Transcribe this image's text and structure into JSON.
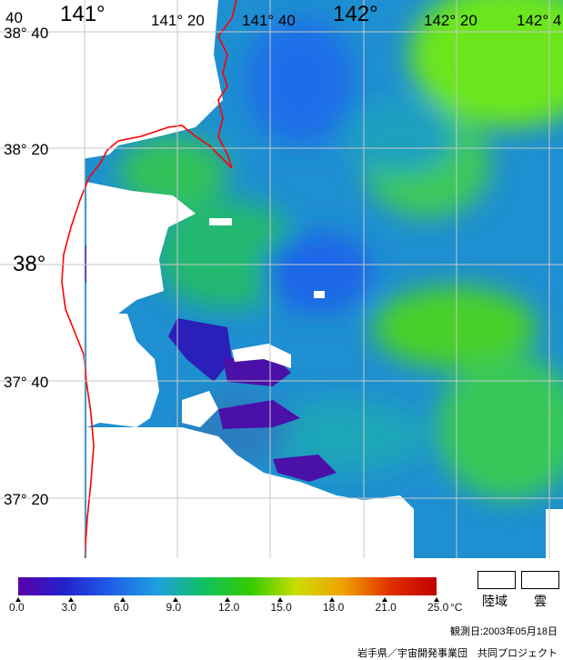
{
  "map": {
    "lon_labels": [
      {
        "text": "40",
        "big": false
      },
      {
        "text": "141°",
        "big": true
      },
      {
        "text": "141° 20",
        "big": false
      },
      {
        "text": "141° 40",
        "big": false
      },
      {
        "text": "142°",
        "big": true
      },
      {
        "text": "142° 20",
        "big": false
      },
      {
        "text": "142° 4",
        "big": false
      }
    ],
    "lat_labels": [
      {
        "text": "38° 40",
        "big": false
      },
      {
        "text": "38° 20",
        "big": false
      },
      {
        "text": "38°",
        "big": true
      },
      {
        "text": "37° 40",
        "big": false
      },
      {
        "text": "37° 20",
        "big": false
      }
    ],
    "coastline_color": "#ff0000",
    "grid_color": "#c8c8c8"
  },
  "colorbar": {
    "unit": "°C",
    "ticks": [
      "0.0",
      "3.0",
      "6.0",
      "9.0",
      "12.0",
      "15.0",
      "18.0",
      "21.0",
      "25.0"
    ],
    "colors": [
      "#5a00aa",
      "#2222cc",
      "#1f5fe8",
      "#1fa0e0",
      "#10c060",
      "#33cc00",
      "#ccdd00",
      "#f0a000",
      "#e03000",
      "#c00000"
    ]
  },
  "legend": {
    "land_label": "陸域",
    "cloud_label": "雲"
  },
  "observation_date": "観測日:2003年05月18日",
  "credit": "岩手県／宇宙開発事業団　共同プロジェクト"
}
